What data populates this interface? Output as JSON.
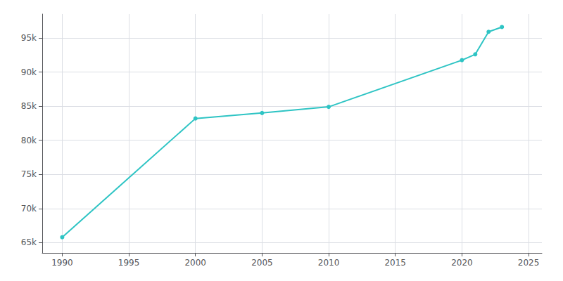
{
  "chart_data": {
    "type": "line",
    "x": [
      1990,
      2000,
      2005,
      2010,
      2020,
      2021,
      2022,
      2023
    ],
    "values": [
      65800,
      83200,
      84000,
      84900,
      91750,
      92600,
      95900,
      96600
    ],
    "color": "#2ec4c4",
    "marker": "circle",
    "xlim": [
      1988.5,
      2026
    ],
    "xticks": [
      1990,
      1995,
      2000,
      2005,
      2010,
      2015,
      2020,
      2025
    ],
    "ylim": [
      63500,
      98500
    ],
    "yticks": [
      {
        "value": 65000,
        "label": "65k"
      },
      {
        "value": 70000,
        "label": "70k"
      },
      {
        "value": 75000,
        "label": "75k"
      },
      {
        "value": 80000,
        "label": "80k"
      },
      {
        "value": 85000,
        "label": "85k"
      },
      {
        "value": 90000,
        "label": "90k"
      },
      {
        "value": 95000,
        "label": "95k"
      }
    ],
    "grid": true
  }
}
